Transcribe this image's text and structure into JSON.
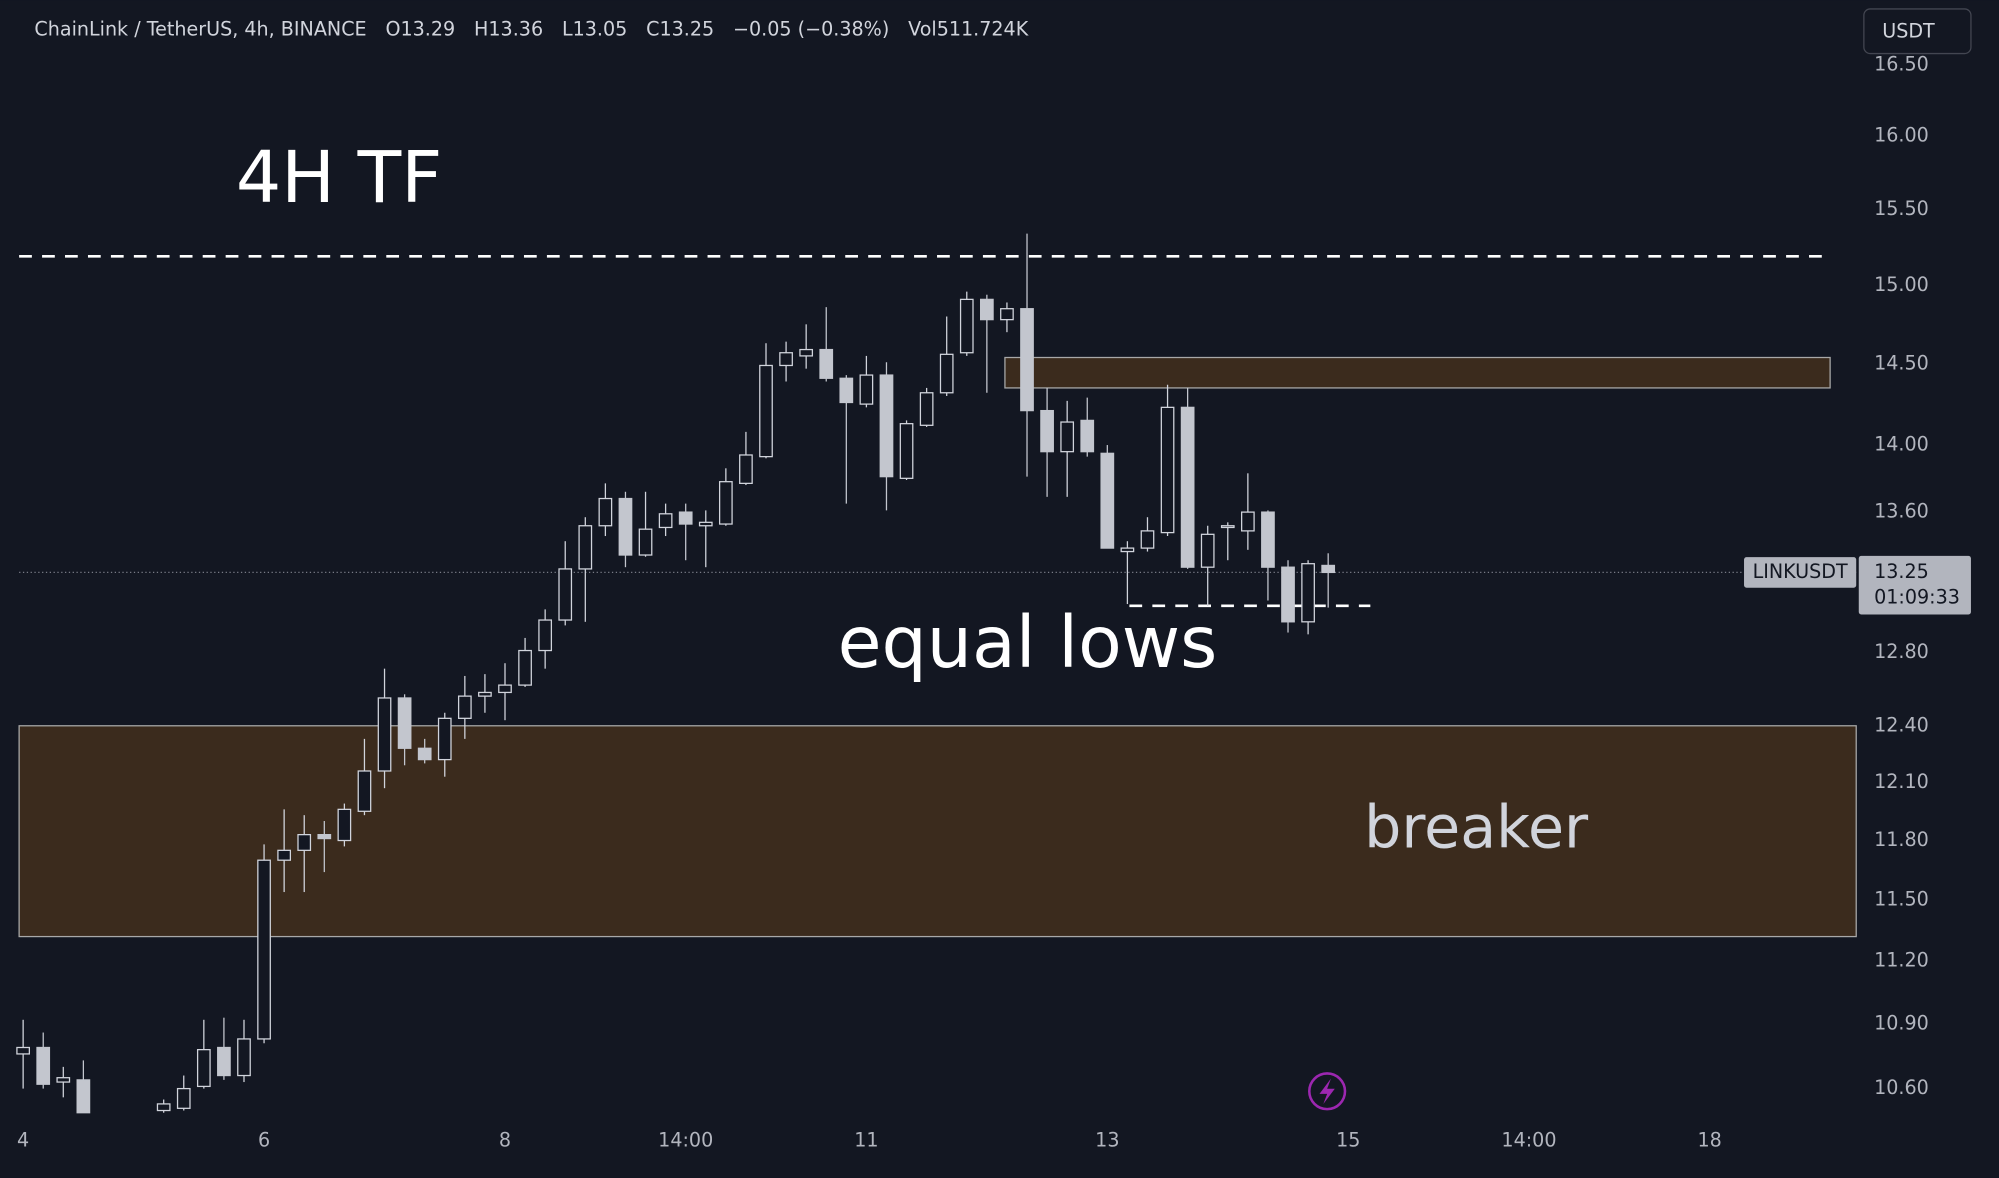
{
  "chart_data": {
    "type": "candlestick",
    "title": "ChainLink / TetherUS, 4h, BINANCE",
    "legend_values": [
      "O13.29",
      "H13.36",
      "L13.05",
      "C13.25",
      "−0.05 (−0.38%)",
      "Vol511.724K"
    ],
    "currency": "USDT",
    "symbol_label": "LINKUSDT",
    "last_price": 13.25,
    "countdown": "01:09:33",
    "log_scale": true,
    "grid": false,
    "colors": {
      "up": "#d1d4dc",
      "down": "#c3c6ce",
      "background": "#131722"
    },
    "xlim": [
      -0.2,
      91.3
    ],
    "xticks": [
      {
        "value": 0,
        "label": "4"
      },
      {
        "value": 12,
        "label": "6"
      },
      {
        "value": 24,
        "label": "8"
      },
      {
        "value": 33,
        "label": "14:00"
      },
      {
        "value": 42,
        "label": "11"
      },
      {
        "value": 54,
        "label": "13"
      },
      {
        "value": 66,
        "label": "15"
      },
      {
        "value": 75,
        "label": "14:00"
      },
      {
        "value": 84,
        "label": "18"
      }
    ],
    "ylim": [
      10.46,
      16.97
    ],
    "yticks": [
      {
        "value": 16.5,
        "label": "16.50"
      },
      {
        "value": 16,
        "label": "16.00"
      },
      {
        "value": 15.5,
        "label": "15.50"
      },
      {
        "value": 15,
        "label": "15.00"
      },
      {
        "value": 14.5,
        "label": "14.50"
      },
      {
        "value": 14,
        "label": "14.00"
      },
      {
        "value": 13.6,
        "label": "13.60"
      },
      {
        "value": 12.8,
        "label": "12.80"
      },
      {
        "value": 12.4,
        "label": "12.40"
      },
      {
        "value": 12.1,
        "label": "12.10"
      },
      {
        "value": 11.8,
        "label": "11.80"
      },
      {
        "value": 11.5,
        "label": "11.50"
      },
      {
        "value": 11.2,
        "label": "11.20"
      },
      {
        "value": 10.9,
        "label": "10.90"
      },
      {
        "value": 10.6,
        "label": "10.60"
      }
    ],
    "x": [
      0,
      1,
      2,
      3,
      7,
      8,
      9,
      10,
      11,
      12,
      13,
      14,
      15,
      16,
      17,
      18,
      19,
      20,
      21,
      22,
      23,
      24,
      25,
      26,
      27,
      28,
      29,
      30,
      31,
      32,
      33,
      34,
      35,
      36,
      37,
      38,
      39,
      40,
      41,
      42,
      43,
      44,
      45,
      46,
      47,
      48,
      49,
      50,
      51,
      52,
      53,
      54,
      55,
      56,
      57,
      58,
      59,
      60,
      61,
      62,
      63,
      64,
      65
    ],
    "open": [
      10.76,
      10.79,
      10.63,
      10.64,
      10.5,
      10.51,
      10.61,
      10.79,
      10.66,
      10.83,
      11.7,
      11.75,
      11.83,
      11.8,
      11.95,
      12.16,
      12.55,
      12.28,
      12.22,
      12.44,
      12.56,
      12.58,
      12.62,
      12.81,
      12.98,
      13.27,
      13.52,
      13.68,
      13.35,
      13.51,
      13.6,
      13.52,
      13.53,
      13.77,
      13.93,
      14.49,
      14.55,
      14.59,
      14.41,
      14.25,
      14.43,
      13.8,
      14.12,
      14.32,
      14.57,
      14.91,
      14.78,
      14.85,
      14.21,
      13.96,
      14.15,
      13.95,
      13.37,
      13.39,
      13.48,
      14.23,
      13.28,
      13.51,
      13.49,
      13.6,
      13.28,
      12.97,
      13.29
    ],
    "high": [
      10.92,
      10.86,
      10.7,
      10.73,
      10.55,
      10.66,
      10.92,
      10.93,
      10.92,
      11.78,
      11.96,
      11.93,
      11.9,
      11.99,
      12.33,
      12.71,
      12.57,
      12.33,
      12.47,
      12.67,
      12.68,
      12.74,
      12.88,
      13.04,
      13.43,
      13.57,
      13.77,
      13.72,
      13.72,
      13.65,
      13.65,
      13.61,
      13.86,
      14.08,
      14.63,
      14.64,
      14.75,
      14.86,
      14.43,
      14.55,
      14.51,
      14.15,
      14.35,
      14.8,
      14.96,
      14.94,
      14.89,
      15.34,
      14.35,
      14.27,
      14.29,
      14.0,
      13.43,
      13.57,
      14.37,
      14.35,
      13.52,
      13.54,
      13.83,
      13.61,
      13.32,
      13.32,
      13.36
    ],
    "low": [
      10.6,
      10.6,
      10.56,
      10.49,
      10.49,
      10.5,
      10.6,
      10.64,
      10.63,
      10.81,
      11.54,
      11.54,
      11.64,
      11.77,
      11.93,
      12.07,
      12.19,
      12.2,
      12.13,
      12.33,
      12.47,
      12.43,
      12.61,
      12.71,
      12.95,
      12.97,
      13.46,
      13.28,
      13.34,
      13.46,
      13.32,
      13.28,
      13.52,
      13.76,
      13.92,
      14.39,
      14.47,
      14.39,
      13.65,
      14.23,
      13.61,
      13.79,
      14.11,
      14.3,
      14.55,
      14.32,
      14.7,
      13.81,
      13.69,
      13.69,
      13.93,
      13.39,
      13.07,
      13.37,
      13.46,
      13.27,
      13.06,
      13.32,
      13.38,
      13.09,
      12.91,
      12.9,
      13.05
    ],
    "close": [
      10.79,
      10.62,
      10.65,
      10.49,
      10.53,
      10.6,
      10.78,
      10.66,
      10.83,
      11.7,
      11.75,
      11.83,
      11.81,
      11.96,
      12.16,
      12.55,
      12.28,
      12.22,
      12.44,
      12.56,
      12.58,
      12.62,
      12.81,
      12.98,
      13.27,
      13.52,
      13.68,
      13.35,
      13.5,
      13.59,
      13.53,
      13.54,
      13.78,
      13.94,
      14.49,
      14.57,
      14.59,
      14.41,
      14.26,
      14.43,
      13.81,
      14.13,
      14.32,
      14.56,
      14.91,
      14.78,
      14.85,
      14.21,
      13.96,
      14.14,
      13.96,
      13.39,
      13.39,
      13.49,
      14.23,
      13.28,
      13.47,
      13.52,
      13.6,
      13.28,
      12.97,
      13.3,
      13.25
    ],
    "zones": [
      {
        "top": 14.54,
        "bottom": 14.35,
        "start": 48.9,
        "end": 90.0,
        "color": "#3b2b1d"
      },
      {
        "top": 12.4,
        "bottom": 11.32,
        "start": -0.2,
        "end": 91.3,
        "color": "#3b2b1d"
      }
    ],
    "levels": [
      {
        "value": 15.19,
        "start": -0.2,
        "end": 89.9
      },
      {
        "value": 13.06,
        "start": 55.1,
        "end": 67.1
      }
    ],
    "annotations": [
      "4H TF",
      "equal lows",
      "breaker"
    ]
  }
}
